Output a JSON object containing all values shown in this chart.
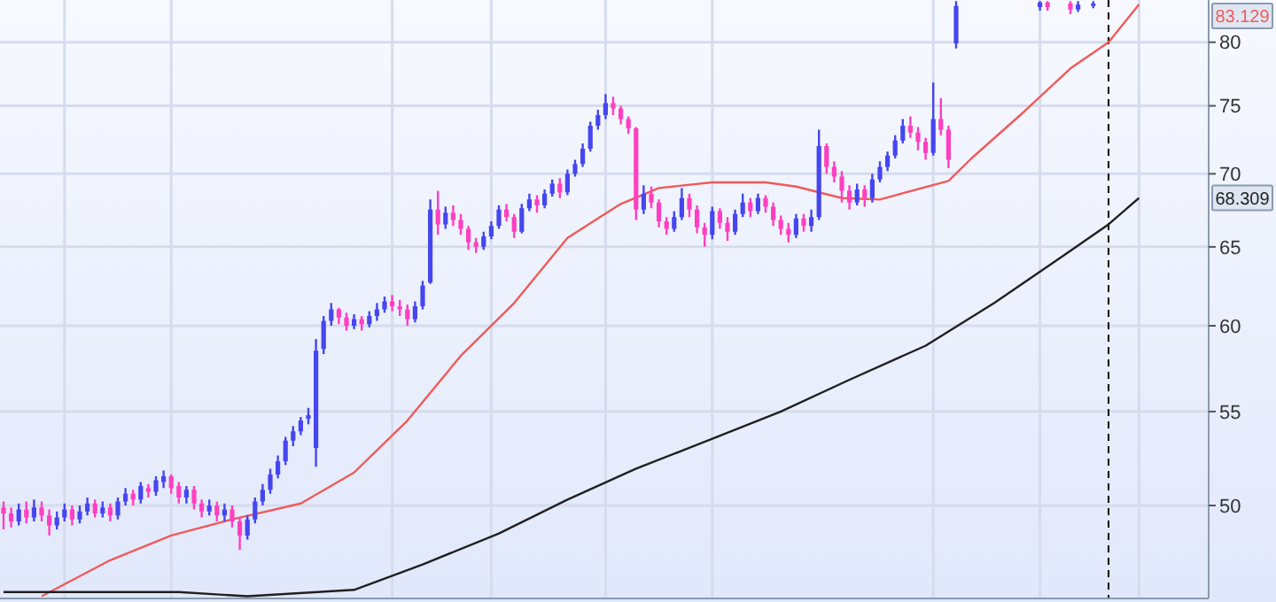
{
  "chart_data": {
    "type": "candlestick",
    "log": true,
    "grid": true,
    "tick_labels": "y",
    "categories": [
      null,
      null,
      null,
      null,
      null,
      null,
      null,
      null,
      null,
      null,
      null,
      null,
      null,
      null,
      null,
      null,
      null,
      null,
      null,
      null,
      null,
      null,
      null,
      null,
      null,
      null,
      null,
      null,
      null,
      null,
      null,
      null,
      null,
      null,
      null,
      null,
      null,
      null,
      null,
      null,
      null,
      null,
      null,
      null,
      null,
      null,
      null,
      null,
      null,
      null,
      null,
      null,
      null,
      null,
      null,
      null,
      null,
      null,
      null,
      null,
      null,
      null,
      null,
      null,
      null,
      null,
      null,
      null,
      null,
      null,
      null,
      null,
      null,
      null,
      null,
      null,
      null,
      null,
      null,
      null,
      null,
      null,
      null,
      null,
      null,
      null,
      null,
      null,
      null,
      null,
      null,
      null,
      null,
      null,
      null,
      null,
      null,
      null,
      null,
      null,
      null,
      null,
      null,
      null,
      null,
      null,
      null,
      null,
      null,
      null,
      null,
      null,
      null,
      null,
      null,
      null,
      null,
      null,
      null,
      null,
      null,
      null,
      null,
      null,
      null,
      null,
      null,
      null,
      null,
      null,
      null,
      null,
      null,
      null,
      null,
      null,
      null,
      null,
      null,
      null,
      null,
      null,
      null,
      null,
      null,
      null,
      null,
      null,
      null,
      null
    ],
    "ylim": [
      45.5,
      83.5
    ],
    "yticks": [
      50,
      55,
      60,
      65,
      70,
      75,
      80
    ],
    "series": [
      {
        "ohlc": [
          [
            49.9,
            50.2,
            48.8,
            49.6
          ],
          [
            49.6,
            49.9,
            48.9,
            49.2
          ],
          [
            49.2,
            50.1,
            49.0,
            49.8
          ],
          [
            49.8,
            50.2,
            49.1,
            49.4
          ],
          [
            49.4,
            50.3,
            49.2,
            49.9
          ],
          [
            49.9,
            50.2,
            49.2,
            49.5
          ],
          [
            49.5,
            49.8,
            48.5,
            49.0
          ],
          [
            49.0,
            49.7,
            48.8,
            49.4
          ],
          [
            49.4,
            50.1,
            49.2,
            49.8
          ],
          [
            49.8,
            50.0,
            49.0,
            49.3
          ],
          [
            49.3,
            50.0,
            49.1,
            49.7
          ],
          [
            49.7,
            50.4,
            49.5,
            50.1
          ],
          [
            50.1,
            50.3,
            49.4,
            49.6
          ],
          [
            49.6,
            50.2,
            49.4,
            49.9
          ],
          [
            49.9,
            50.1,
            49.2,
            49.5
          ],
          [
            49.5,
            50.4,
            49.3,
            50.2
          ],
          [
            50.2,
            50.9,
            50.0,
            50.6
          ],
          [
            50.6,
            50.8,
            50.0,
            50.3
          ],
          [
            50.3,
            51.2,
            50.1,
            51.0
          ],
          [
            50.9,
            51.1,
            50.4,
            50.7
          ],
          [
            50.7,
            51.5,
            50.5,
            51.3
          ],
          [
            51.2,
            51.8,
            50.9,
            51.5
          ],
          [
            51.5,
            51.6,
            50.6,
            50.9
          ],
          [
            51.0,
            51.2,
            50.1,
            50.4
          ],
          [
            50.4,
            51.0,
            50.1,
            50.8
          ],
          [
            50.8,
            51.0,
            49.8,
            50.1
          ],
          [
            50.1,
            50.3,
            49.4,
            49.7
          ],
          [
            49.7,
            50.3,
            49.5,
            50.0
          ],
          [
            50.0,
            50.2,
            49.2,
            49.5
          ],
          [
            49.5,
            50.1,
            49.2,
            49.8
          ],
          [
            49.8,
            50.0,
            48.9,
            49.2
          ],
          [
            49.2,
            49.4,
            47.8,
            48.5
          ],
          [
            48.5,
            49.5,
            48.3,
            49.3
          ],
          [
            49.3,
            50.4,
            49.1,
            50.2
          ],
          [
            50.2,
            51.1,
            50.0,
            50.8
          ],
          [
            50.8,
            51.9,
            50.6,
            51.6
          ],
          [
            51.6,
            52.6,
            51.4,
            52.3
          ],
          [
            52.3,
            53.6,
            52.1,
            53.4
          ],
          [
            53.4,
            54.2,
            53.1,
            53.9
          ],
          [
            53.9,
            54.7,
            53.7,
            54.5
          ],
          [
            54.6,
            55.2,
            54.3,
            54.8
          ],
          [
            53.0,
            59.2,
            52.0,
            58.5
          ],
          [
            58.6,
            60.6,
            58.3,
            60.3
          ],
          [
            60.3,
            61.4,
            60.0,
            61.0
          ],
          [
            61.0,
            61.1,
            60.1,
            60.5
          ],
          [
            60.5,
            60.8,
            59.7,
            60.0
          ],
          [
            60.0,
            60.7,
            59.8,
            60.4
          ],
          [
            60.4,
            60.6,
            59.7,
            60.1
          ],
          [
            60.1,
            60.9,
            59.9,
            60.6
          ],
          [
            60.6,
            61.4,
            60.3,
            61.0
          ],
          [
            61.0,
            61.8,
            60.8,
            61.5
          ],
          [
            61.5,
            61.9,
            60.9,
            61.2
          ],
          [
            61.2,
            61.6,
            60.6,
            61.0
          ],
          [
            61.0,
            61.3,
            60.0,
            60.4
          ],
          [
            60.4,
            61.5,
            60.2,
            61.2
          ],
          [
            61.2,
            62.8,
            61.0,
            62.5
          ],
          [
            62.7,
            68.2,
            62.6,
            67.5
          ],
          [
            67.5,
            68.8,
            65.8,
            66.5
          ],
          [
            66.5,
            67.7,
            66.2,
            67.3
          ],
          [
            67.3,
            67.8,
            66.4,
            66.8
          ],
          [
            66.8,
            67.2,
            65.8,
            66.2
          ],
          [
            66.2,
            66.4,
            64.8,
            65.3
          ],
          [
            65.3,
            65.6,
            64.6,
            65.0
          ],
          [
            65.0,
            66.0,
            64.8,
            65.7
          ],
          [
            65.7,
            66.7,
            65.5,
            66.4
          ],
          [
            66.4,
            67.8,
            66.2,
            67.5
          ],
          [
            67.5,
            67.9,
            66.7,
            67.0
          ],
          [
            67.0,
            67.2,
            65.6,
            66.0
          ],
          [
            66.0,
            67.9,
            65.9,
            67.6
          ],
          [
            67.6,
            68.6,
            67.4,
            68.2
          ],
          [
            68.2,
            68.5,
            67.3,
            67.8
          ],
          [
            67.8,
            68.9,
            67.6,
            68.6
          ],
          [
            68.6,
            69.6,
            68.4,
            69.3
          ],
          [
            69.3,
            69.7,
            68.3,
            68.7
          ],
          [
            68.7,
            70.3,
            68.5,
            70.0
          ],
          [
            70.0,
            71.0,
            69.8,
            70.7
          ],
          [
            70.7,
            72.2,
            70.5,
            71.8
          ],
          [
            71.8,
            73.8,
            71.6,
            73.5
          ],
          [
            73.5,
            74.7,
            73.2,
            74.3
          ],
          [
            74.3,
            75.9,
            74.0,
            75.2
          ],
          [
            75.2,
            75.7,
            74.3,
            74.8
          ],
          [
            74.8,
            75.0,
            73.6,
            74.0
          ],
          [
            74.0,
            74.2,
            72.9,
            73.3
          ],
          [
            73.3,
            73.4,
            66.8,
            67.5
          ],
          [
            67.5,
            69.2,
            67.2,
            68.6
          ],
          [
            68.6,
            69.1,
            67.6,
            68.0
          ],
          [
            68.0,
            68.2,
            66.3,
            66.7
          ],
          [
            66.7,
            67.0,
            65.8,
            66.2
          ],
          [
            66.2,
            67.4,
            66.0,
            67.0
          ],
          [
            67.0,
            69.0,
            66.8,
            68.3
          ],
          [
            68.3,
            68.6,
            67.0,
            67.5
          ],
          [
            67.5,
            67.8,
            65.9,
            66.3
          ],
          [
            66.3,
            66.6,
            65.0,
            65.8
          ],
          [
            65.8,
            67.7,
            65.5,
            67.4
          ],
          [
            67.4,
            67.6,
            66.2,
            66.6
          ],
          [
            66.6,
            67.0,
            65.4,
            66.0
          ],
          [
            66.0,
            67.5,
            65.8,
            67.2
          ],
          [
            67.2,
            68.6,
            67.0,
            68.0
          ],
          [
            68.0,
            68.3,
            67.0,
            67.4
          ],
          [
            67.4,
            68.6,
            67.2,
            68.3
          ],
          [
            68.3,
            68.5,
            67.3,
            67.7
          ],
          [
            67.7,
            68.0,
            66.4,
            66.8
          ],
          [
            66.8,
            67.1,
            65.8,
            66.2
          ],
          [
            66.2,
            66.6,
            65.3,
            65.8
          ],
          [
            65.8,
            67.2,
            65.6,
            66.9
          ],
          [
            66.9,
            67.2,
            66.0,
            66.4
          ],
          [
            66.4,
            67.5,
            66.0,
            67.0
          ],
          [
            67.0,
            73.2,
            66.8,
            72.0
          ],
          [
            72.0,
            72.2,
            70.0,
            70.5
          ],
          [
            70.5,
            70.9,
            69.4,
            69.8
          ],
          [
            69.8,
            70.2,
            68.0,
            68.8
          ],
          [
            68.8,
            69.2,
            67.5,
            68.0
          ],
          [
            68.0,
            69.3,
            67.8,
            68.9
          ],
          [
            68.9,
            69.2,
            67.7,
            68.3
          ],
          [
            68.3,
            70.0,
            68.0,
            69.6
          ],
          [
            69.6,
            70.9,
            69.4,
            70.5
          ],
          [
            70.5,
            71.6,
            70.2,
            71.3
          ],
          [
            71.3,
            72.8,
            71.1,
            72.4
          ],
          [
            72.4,
            74.0,
            72.2,
            73.5
          ],
          [
            73.5,
            74.2,
            72.6,
            73.0
          ],
          [
            73.0,
            73.4,
            71.7,
            72.3
          ],
          [
            72.3,
            72.6,
            71.0,
            71.5
          ],
          [
            71.5,
            76.8,
            71.3,
            74.0
          ],
          [
            74.0,
            75.6,
            72.8,
            73.2
          ],
          [
            73.2,
            73.5,
            70.4,
            71.0
          ],
          [
            79.9,
            83.4,
            79.5,
            83.0
          ],
          null,
          null,
          null,
          null,
          null,
          null,
          null,
          null,
          null,
          null,
          [
            82.9,
            83.4,
            82.6,
            83.3
          ],
          [
            83.3,
            83.4,
            82.6,
            82.9
          ],
          null,
          null,
          [
            83.2,
            83.4,
            82.3,
            82.7
          ],
          [
            82.7,
            83.4,
            82.5,
            83.1
          ],
          null,
          [
            83.0,
            83.4,
            82.8,
            83.2
          ],
          null,
          null,
          null,
          null,
          null,
          null
        ],
        "colors": [
          "#ff3fc0",
          "#ff3fc0",
          "#4646f0",
          "#ff3fc0",
          "#4646f0",
          "#ff3fc0",
          "#ff3fc0",
          "#4646f0",
          "#4646f0",
          "#ff3fc0",
          "#4646f0",
          "#4646f0",
          "#ff3fc0",
          "#4646f0",
          "#ff3fc0",
          "#4646f0",
          "#4646f0",
          "#ff3fc0",
          "#4646f0",
          "#ff3fc0",
          "#4646f0",
          "#4646f0",
          "#ff3fc0",
          "#ff3fc0",
          "#4646f0",
          "#ff3fc0",
          "#ff3fc0",
          "#4646f0",
          "#ff3fc0",
          "#4646f0",
          "#ff3fc0",
          "#ff3fc0",
          "#4646f0",
          "#4646f0",
          "#4646f0",
          "#4646f0",
          "#4646f0",
          "#4646f0",
          "#4646f0",
          "#4646f0",
          "#4646f0",
          "#4646f0",
          "#4646f0",
          "#4646f0",
          "#ff3fc0",
          "#ff3fc0",
          "#4646f0",
          "#ff3fc0",
          "#4646f0",
          "#4646f0",
          "#4646f0",
          "#ff3fc0",
          "#ff3fc0",
          "#ff3fc0",
          "#4646f0",
          "#4646f0",
          "#4646f0",
          "#ff3fc0",
          "#4646f0",
          "#ff3fc0",
          "#ff3fc0",
          "#ff3fc0",
          "#ff3fc0",
          "#4646f0",
          "#4646f0",
          "#4646f0",
          "#ff3fc0",
          "#ff3fc0",
          "#4646f0",
          "#4646f0",
          "#ff3fc0",
          "#4646f0",
          "#4646f0",
          "#ff3fc0",
          "#4646f0",
          "#4646f0",
          "#4646f0",
          "#4646f0",
          "#4646f0",
          "#4646f0",
          "#ff3fc0",
          "#ff3fc0",
          "#ff3fc0",
          "#ff3fc0",
          "#4646f0",
          "#ff3fc0",
          "#ff3fc0",
          "#ff3fc0",
          "#4646f0",
          "#4646f0",
          "#ff3fc0",
          "#ff3fc0",
          "#ff3fc0",
          "#4646f0",
          "#ff3fc0",
          "#ff3fc0",
          "#4646f0",
          "#4646f0",
          "#ff3fc0",
          "#4646f0",
          "#ff3fc0",
          "#ff3fc0",
          "#ff3fc0",
          "#ff3fc0",
          "#4646f0",
          "#ff3fc0",
          "#4646f0",
          "#4646f0",
          "#ff3fc0",
          "#ff3fc0",
          "#ff3fc0",
          "#ff3fc0",
          "#4646f0",
          "#ff3fc0",
          "#4646f0",
          "#4646f0",
          "#4646f0",
          "#4646f0",
          "#4646f0",
          "#ff3fc0",
          "#ff3fc0",
          "#ff3fc0",
          "#4646f0",
          "#ff3fc0",
          "#ff3fc0",
          "#4646f0",
          null,
          null,
          null,
          null,
          null,
          null,
          null,
          null,
          null,
          null,
          "#4646f0",
          "#ff3fc0",
          null,
          null,
          "#ff3fc0",
          "#4646f0",
          null,
          "#4646f0",
          null,
          null,
          null,
          null,
          null,
          null
        ]
      },
      {
        "type": "line",
        "color": "#f05a5a",
        "values": [
          null,
          null,
          null,
          null,
          null,
          45.6,
          null,
          null,
          null,
          null,
          null,
          null,
          null,
          null,
          47.3,
          null,
          null,
          null,
          null,
          null,
          null,
          null,
          48.5,
          null,
          null,
          null,
          null,
          null,
          null,
          null,
          49.3,
          null,
          null,
          null,
          null,
          null,
          null,
          null,
          null,
          50.1,
          null,
          null,
          null,
          null,
          null,
          null,
          51.7,
          null,
          null,
          null,
          null,
          null,
          null,
          54.5,
          null,
          null,
          null,
          null,
          null,
          null,
          58.2,
          null,
          null,
          null,
          null,
          null,
          null,
          61.4,
          null,
          null,
          null,
          null,
          null,
          null,
          65.6,
          null,
          null,
          null,
          null,
          null,
          null,
          67.9,
          null,
          null,
          null,
          null,
          69.0,
          null,
          null,
          null,
          null,
          null,
          null,
          69.4,
          null,
          null,
          null,
          null,
          null,
          null,
          69.4,
          null,
          null,
          null,
          69.1,
          null,
          null,
          null,
          null,
          null,
          68.3,
          null,
          null,
          null,
          null,
          68.2,
          null,
          null,
          null,
          null,
          null,
          null,
          null,
          null,
          69.5,
          null,
          null,
          71.1,
          null,
          null,
          null,
          null,
          null,
          null,
          74.6,
          null,
          null,
          null,
          null,
          null,
          77.9,
          null,
          null,
          null,
          null,
          80.0,
          null,
          null,
          null,
          83.129
        ]
      },
      {
        "type": "line",
        "color": "#202020",
        "values": [
          45.8,
          null,
          null,
          null,
          null,
          null,
          null,
          null,
          null,
          null,
          null,
          null,
          null,
          null,
          null,
          null,
          null,
          null,
          null,
          null,
          null,
          null,
          null,
          45.8,
          null,
          null,
          null,
          null,
          null,
          null,
          null,
          null,
          45.6,
          null,
          null,
          null,
          null,
          null,
          null,
          null,
          null,
          null,
          null,
          null,
          null,
          null,
          45.9,
          null,
          null,
          null,
          null,
          null,
          null,
          null,
          null,
          47.1,
          null,
          null,
          null,
          null,
          null,
          null,
          null,
          null,
          null,
          48.6,
          null,
          null,
          null,
          null,
          null,
          null,
          null,
          null,
          50.3,
          null,
          null,
          null,
          null,
          null,
          null,
          null,
          null,
          51.9,
          null,
          null,
          null,
          null,
          null,
          null,
          null,
          null,
          null,
          53.5,
          null,
          null,
          null,
          null,
          null,
          null,
          null,
          null,
          55.0,
          null,
          null,
          null,
          null,
          null,
          null,
          null,
          null,
          56.8,
          null,
          null,
          null,
          null,
          null,
          null,
          null,
          null,
          null,
          58.8,
          null,
          null,
          null,
          null,
          null,
          null,
          null,
          null,
          61.4,
          null,
          null,
          null,
          null,
          null,
          null,
          null,
          null,
          64.4,
          null,
          null,
          null,
          null,
          null,
          66.5,
          null,
          null,
          null,
          68.309
        ]
      }
    ],
    "annotations": [
      "83.129",
      "68.309"
    ]
  }
}
